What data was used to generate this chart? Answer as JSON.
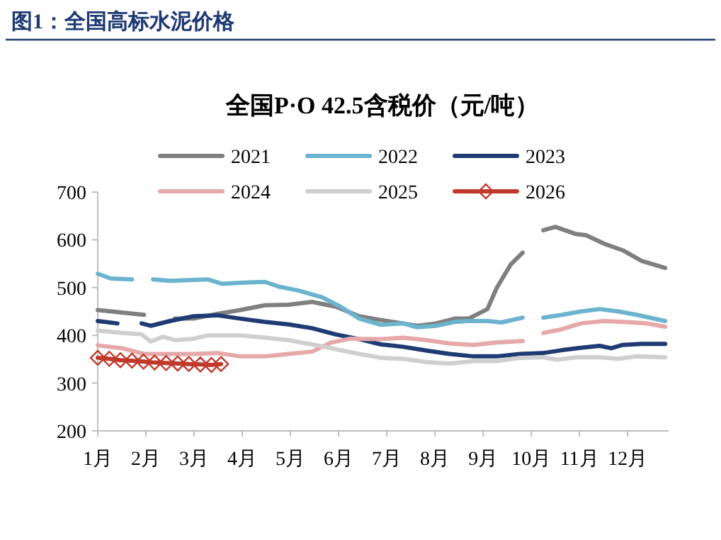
{
  "chart_data": {
    "type": "line",
    "title": "全国P·O 42.5含税价（元/吨）",
    "annotations": [
      "图1：全国高标水泥价格"
    ],
    "xlim": [
      1,
      12.85
    ],
    "xticks": [
      {
        "value": 1,
        "label": "1月"
      },
      {
        "value": 2,
        "label": "2月"
      },
      {
        "value": 3,
        "label": "3月"
      },
      {
        "value": 4,
        "label": "4月"
      },
      {
        "value": 5,
        "label": "5月"
      },
      {
        "value": 6,
        "label": "6月"
      },
      {
        "value": 7,
        "label": "7月"
      },
      {
        "value": 8,
        "label": "8月"
      },
      {
        "value": 9,
        "label": "9月"
      },
      {
        "value": 10,
        "label": "10月"
      },
      {
        "value": 11,
        "label": "11月"
      },
      {
        "value": 12,
        "label": "12月"
      }
    ],
    "ylim": [
      200,
      700
    ],
    "yticks": [
      200,
      300,
      400,
      500,
      600,
      700
    ],
    "grid": false,
    "legend": "top",
    "line_style": "solid",
    "series": [
      {
        "name": "2021",
        "color": "#7f7f7f",
        "x": [
          1,
          1.96,
          2.3,
          2.6,
          2.99,
          3.48,
          3.96,
          4.47,
          4.96,
          5.45,
          5.94,
          6.43,
          6.88,
          7.34,
          7.63,
          8.02,
          8.41,
          8.7,
          9.09,
          9.28,
          9.57,
          9.82,
          10.0,
          10.25,
          10.5,
          10.93,
          11.13,
          11.51,
          11.9,
          12.29,
          12.78
        ],
        "values": [
          453,
          443,
          null,
          435,
          435,
          445,
          453,
          463,
          464,
          470,
          460,
          440,
          432,
          425,
          420,
          425,
          435,
          435,
          455,
          499,
          548,
          573,
          null,
          620,
          627,
          612,
          610,
          592,
          578,
          556,
          541
        ]
      },
      {
        "name": "2022",
        "color": "#6bb3cf",
        "x": [
          1,
          1.27,
          1.71,
          1.95,
          2.15,
          2.5,
          2.99,
          3.29,
          3.58,
          3.96,
          4.47,
          4.76,
          5.16,
          5.65,
          6.04,
          6.43,
          6.88,
          7.34,
          7.63,
          8.02,
          8.41,
          8.7,
          9.09,
          9.38,
          9.82,
          10.0,
          10.25,
          10.64,
          11.03,
          11.42,
          11.81,
          12.19,
          12.78
        ],
        "values": [
          529,
          519,
          517,
          null,
          517,
          514,
          516,
          517,
          508,
          510,
          512,
          502,
          494,
          480,
          460,
          435,
          422,
          425,
          417,
          420,
          428,
          430,
          430,
          427,
          437,
          null,
          437,
          443,
          450,
          455,
          450,
          443,
          430
        ]
      },
      {
        "name": "2023",
        "color": "#1f3b73",
        "x": [
          1,
          1.41,
          1.7,
          1.91,
          2.1,
          2.5,
          2.99,
          3.48,
          3.96,
          4.47,
          4.96,
          5.45,
          5.94,
          6.43,
          6.88,
          7.0,
          7.34,
          7.83,
          8.31,
          8.8,
          9.28,
          9.77,
          10.25,
          10.64,
          11.03,
          11.42,
          11.66,
          11.9,
          12.29,
          12.78
        ],
        "values": [
          430,
          425,
          null,
          425,
          420,
          430,
          440,
          442,
          435,
          428,
          423,
          415,
          402,
          392,
          381,
          380,
          376,
          368,
          361,
          356,
          356,
          361,
          363,
          369,
          374,
          378,
          373,
          380,
          382,
          382
        ]
      },
      {
        "name": "2024",
        "color": "#e6a8a8",
        "x": [
          1,
          1.51,
          1.96,
          2.5,
          2.99,
          3.48,
          3.96,
          4.47,
          4.96,
          5.45,
          5.85,
          6.24,
          6.88,
          7.34,
          7.83,
          8.31,
          8.8,
          9.28,
          9.82,
          10.0,
          10.25,
          10.64,
          11.03,
          11.51,
          11.9,
          12.39,
          12.78
        ],
        "values": [
          379,
          373,
          361,
          361,
          361,
          363,
          356,
          356,
          361,
          366,
          385,
          393,
          392,
          395,
          390,
          383,
          380,
          385,
          388,
          null,
          405,
          413,
          425,
          430,
          428,
          425,
          418
        ]
      },
      {
        "name": "2025",
        "color": "#cfcfcf",
        "x": [
          1,
          1.51,
          1.91,
          2.1,
          2.35,
          2.6,
          2.99,
          3.29,
          3.96,
          4.47,
          4.96,
          5.45,
          5.94,
          6.43,
          6.88,
          7.34,
          7.83,
          8.31,
          8.8,
          9.28,
          9.77,
          10.25,
          10.54,
          10.93,
          11.42,
          11.81,
          12.19,
          12.78
        ],
        "values": [
          410,
          405,
          402,
          387,
          397,
          390,
          393,
          400,
          400,
          395,
          390,
          381,
          371,
          361,
          353,
          351,
          344,
          341,
          346,
          346,
          353,
          354,
          349,
          354,
          354,
          351,
          356,
          354
        ]
      },
      {
        "name": "2026",
        "color": "#c0392b",
        "marker": "diamond",
        "x": [
          1,
          1.24,
          1.47,
          1.71,
          1.95,
          2.18,
          2.42,
          2.66,
          2.89,
          3.13,
          3.36,
          3.56
        ],
        "values": [
          353,
          351,
          348,
          347,
          345,
          343,
          342,
          341,
          340,
          339,
          338,
          340
        ]
      }
    ]
  }
}
